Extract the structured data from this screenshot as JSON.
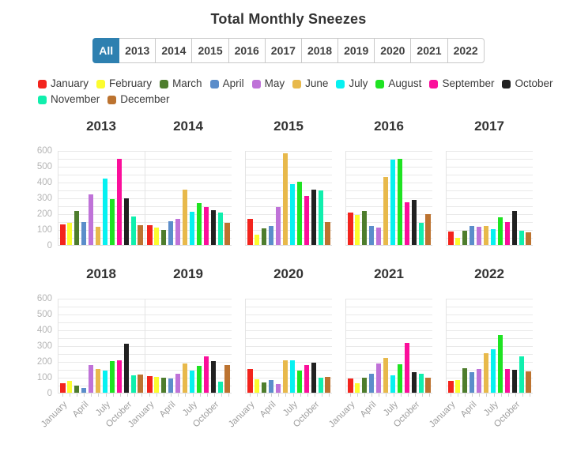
{
  "title": "Total Monthly Sneezes",
  "tabs": {
    "active": "All",
    "items": [
      "All",
      "2013",
      "2014",
      "2015",
      "2016",
      "2017",
      "2018",
      "2019",
      "2020",
      "2021",
      "2022"
    ]
  },
  "colors": {
    "active_tab_bg": "#2e80b0",
    "active_tab_text": "#ffffff"
  },
  "legend": {
    "items": [
      {
        "label": "January",
        "color": "#f3241d"
      },
      {
        "label": "February",
        "color": "#fcfc2f"
      },
      {
        "label": "March",
        "color": "#4e7d2d"
      },
      {
        "label": "April",
        "color": "#5b8dca"
      },
      {
        "label": "May",
        "color": "#bf72d8"
      },
      {
        "label": "June",
        "color": "#e8b94b"
      },
      {
        "label": "July",
        "color": "#06f1f1"
      },
      {
        "label": "August",
        "color": "#1fe322"
      },
      {
        "label": "September",
        "color": "#fb0f9b"
      },
      {
        "label": "October",
        "color": "#212121"
      },
      {
        "label": "November",
        "color": "#10efad"
      },
      {
        "label": "December",
        "color": "#bc7330"
      }
    ]
  },
  "chart_data": {
    "type": "bar",
    "categories": [
      "January",
      "February",
      "March",
      "April",
      "May",
      "June",
      "July",
      "August",
      "September",
      "October",
      "November",
      "December"
    ],
    "ylim": [
      0,
      600
    ],
    "yticks": [
      "0",
      "100",
      "200",
      "300",
      "400",
      "500",
      "600"
    ],
    "grid_step": 50,
    "legend_position": "top",
    "x_tick_labels": [
      "January",
      "April",
      "July",
      "October"
    ],
    "charts": [
      {
        "title": "2013",
        "values": [
          130,
          140,
          215,
          145,
          320,
          115,
          420,
          290,
          545,
          295,
          180,
          125
        ]
      },
      {
        "title": "2014",
        "values": [
          125,
          110,
          95,
          150,
          165,
          350,
          210,
          265,
          240,
          220,
          205,
          140
        ]
      },
      {
        "title": "2015",
        "values": [
          165,
          65,
          105,
          120,
          240,
          580,
          385,
          400,
          310,
          350,
          345,
          145
        ]
      },
      {
        "title": "2016",
        "values": [
          205,
          190,
          215,
          120,
          110,
          430,
          540,
          545,
          270,
          285,
          140,
          195
        ]
      },
      {
        "title": "2017",
        "values": [
          85,
          45,
          90,
          120,
          115,
          120,
          100,
          175,
          145,
          215,
          90,
          80
        ]
      },
      {
        "title": "2018",
        "values": [
          60,
          75,
          45,
          30,
          175,
          150,
          140,
          200,
          205,
          310,
          110,
          115
        ]
      },
      {
        "title": "2019",
        "values": [
          105,
          100,
          95,
          90,
          120,
          185,
          140,
          170,
          230,
          200,
          70,
          175
        ]
      },
      {
        "title": "2020",
        "values": [
          150,
          85,
          65,
          80,
          55,
          205,
          205,
          140,
          175,
          190,
          95,
          100
        ]
      },
      {
        "title": "2021",
        "values": [
          90,
          60,
          95,
          120,
          185,
          220,
          110,
          180,
          315,
          130,
          120,
          95
        ]
      },
      {
        "title": "2022",
        "values": [
          75,
          80,
          155,
          130,
          150,
          250,
          275,
          365,
          150,
          145,
          230,
          135
        ]
      }
    ]
  }
}
